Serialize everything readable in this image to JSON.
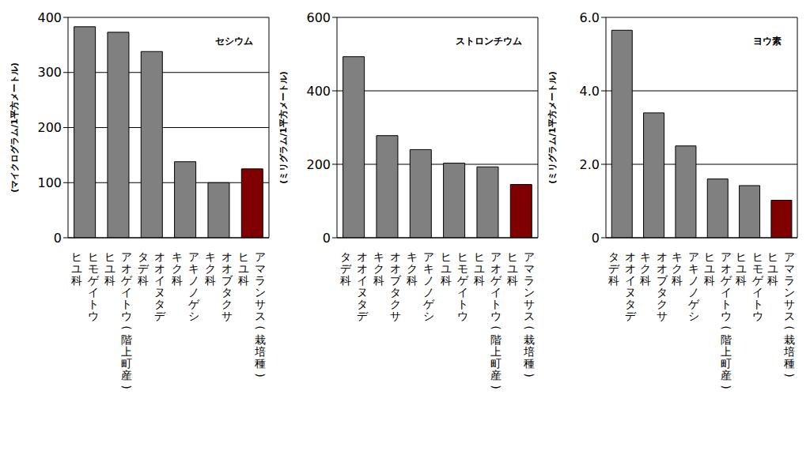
{
  "chart_data": [
    {
      "type": "bar",
      "title": "セシウム",
      "y_label": "(マイクログラム/1平方メートル)",
      "categories": [
        "ヒユ科 ヒモゲイトウ",
        "ヒユ科 アオゲイトウ(階上町産)",
        "タデ科 オオイヌタデ",
        "キク科 アキノノゲシ",
        "キク科 オオブタクサ",
        "ヒユ科 アマランサス(栽培種)"
      ],
      "values": [
        383,
        373,
        338,
        138,
        100,
        125
      ],
      "colors": [
        "#808080",
        "#808080",
        "#808080",
        "#808080",
        "#808080",
        "#800000"
      ],
      "ylim": [
        0,
        400
      ],
      "yticks": [
        0,
        100,
        200,
        300,
        400
      ],
      "grid": true
    },
    {
      "type": "bar",
      "title": "ストロンチウム",
      "y_label": "(ミリグラム/1平方メートル)",
      "categories": [
        "タデ科 オオイヌタデ",
        "キク科 オオブタクサ",
        "キク科 アキノノゲシ",
        "ヒユ科 ヒモゲイトウ",
        "ヒユ科 アオゲイトウ(階上町産)",
        "ヒユ科 アマランサス(栽培種)"
      ],
      "values": [
        493,
        278,
        240,
        203,
        193,
        145
      ],
      "colors": [
        "#808080",
        "#808080",
        "#808080",
        "#808080",
        "#808080",
        "#800000"
      ],
      "ylim": [
        0,
        600
      ],
      "yticks": [
        0,
        200,
        400,
        600
      ],
      "grid": true
    },
    {
      "type": "bar",
      "title": "ヨウ素",
      "y_label": "(ミリグラム/1平方メートル)",
      "categories": [
        "タデ科 オオイヌタデ",
        "キク科 オオブタクサ",
        "キク科 アキノノゲシ",
        "ヒユ科 アオゲイトウ(階上町産)",
        "ヒユ科 ヒモゲイトウ",
        "ヒユ科 アマランサス(栽培種)"
      ],
      "values": [
        5.65,
        3.4,
        2.5,
        1.6,
        1.42,
        1.02
      ],
      "colors": [
        "#808080",
        "#808080",
        "#808080",
        "#808080",
        "#808080",
        "#800000"
      ],
      "ylim": [
        0,
        6
      ],
      "yticks": [
        0,
        {
          "value": 2,
          "label": "2.0"
        },
        {
          "value": 4,
          "label": "4.0"
        },
        {
          "value": 6,
          "label": "6.0"
        }
      ],
      "grid": true
    }
  ]
}
